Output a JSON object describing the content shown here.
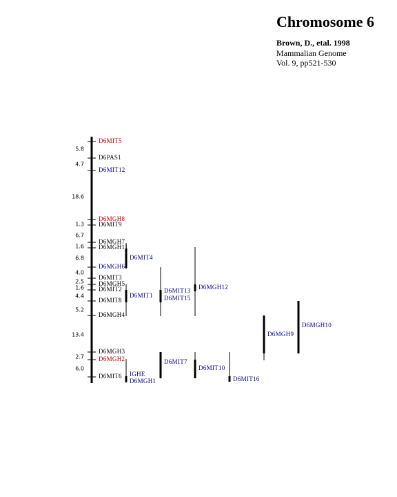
{
  "header": {
    "title": "Chromosome 6",
    "citation": "Brown, D., etal. 1998",
    "journal": "Mammalian Genome",
    "volume": "Vol. 9, pp521-530"
  },
  "markers": [
    "D6MIT5",
    "D6PAS1",
    "D6MIT12",
    "D6MGH8",
    "D6MIT9",
    "D6MGH7",
    "D6MGH11",
    "D6MGH6",
    "D6MIT3",
    "D6MGH5",
    "D6MIT2",
    "D6MIT8",
    "D6MGH4",
    "D6MGH3",
    "D6MGH2",
    "D6MIT6"
  ],
  "distances": [
    "5.8",
    "4.7",
    "18.6",
    "1.3",
    "6.7",
    "1.6",
    "6.8",
    "4.0",
    "2.5",
    "1.6",
    "4.4",
    "5.2",
    "13.4",
    "2.7",
    "6.0"
  ],
  "intervals": [
    {
      "labels": [
        "D6MIT4"
      ]
    },
    {
      "labels": [
        "D6MIT1"
      ]
    },
    {
      "labels": [
        "IGHE",
        "D6MGH1"
      ]
    },
    {
      "labels": [
        "D6MIT13",
        "D6MIT15"
      ]
    },
    {
      "labels": [
        "D6MIT7"
      ]
    },
    {
      "labels": [
        "D6MGH12"
      ]
    },
    {
      "labels": [
        "D6MIT10"
      ]
    },
    {
      "labels": [
        "D6MIT16"
      ]
    },
    {
      "labels": [
        "D6MGH9"
      ]
    },
    {
      "labels": [
        "D6MGH10"
      ]
    }
  ]
}
